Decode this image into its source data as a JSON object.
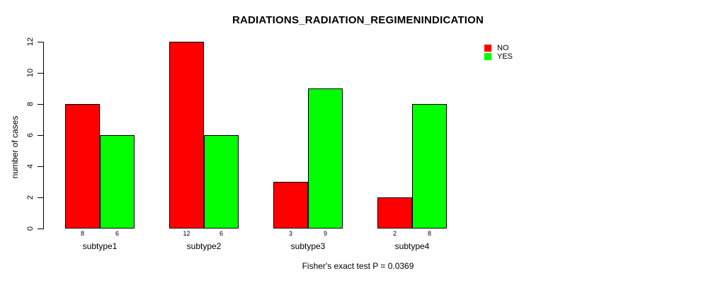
{
  "chart_data": {
    "type": "bar",
    "title": "RADIATIONS_RADIATION_REGIMENINDICATION",
    "ylabel": "number of cases",
    "xlabel": "",
    "annotation": "Fisher's exact test P = 0.0369",
    "categories": [
      "subtype1",
      "subtype2",
      "subtype3",
      "subtype4"
    ],
    "series": [
      {
        "name": "NO",
        "color": "#ff0000",
        "values": [
          8,
          12,
          3,
          2
        ]
      },
      {
        "name": "YES",
        "color": "#00ff00",
        "values": [
          6,
          6,
          9,
          8
        ]
      }
    ],
    "ylim": [
      0,
      12
    ],
    "yticks": [
      0,
      2,
      4,
      6,
      8,
      10,
      12
    ],
    "grid": false,
    "legend_position": "top-right",
    "bar_value_labels": true,
    "background_color": "#ffffff",
    "axis_color": "#000000"
  }
}
